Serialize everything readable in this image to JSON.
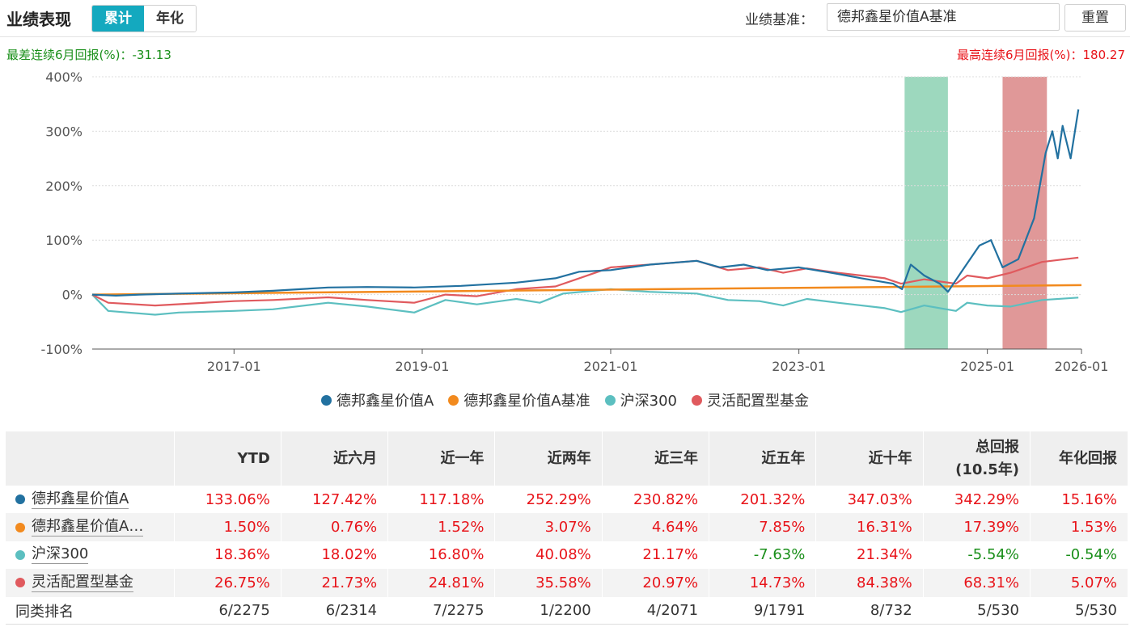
{
  "header": {
    "title": "业绩表现",
    "tabs": [
      {
        "label": "累计",
        "active": true
      },
      {
        "label": "年化",
        "active": false
      }
    ],
    "benchmark_label": "业绩基准：",
    "benchmark_value": "德邦鑫星价值A基准",
    "reset_label": "重置"
  },
  "stats": {
    "worst_label": "最差连续6月回报(%)：",
    "worst_value": "-31.13",
    "best_label": "最高连续6月回报(%)：",
    "best_value": "180.27"
  },
  "colors": {
    "fund": "#2271a0",
    "benchmark": "#f28a1e",
    "hs300": "#5cbfc0",
    "category": "#e05a5e",
    "worst_band": "#7ccba8",
    "best_band": "#d67676",
    "positive": "#e8141a",
    "negative": "#1a8f1a"
  },
  "chart_data": {
    "type": "line",
    "ylim": [
      -100,
      400
    ],
    "yticks": [
      "-100%",
      "0%",
      "100%",
      "200%",
      "300%",
      "400%"
    ],
    "xlim": [
      "2015-07-01",
      "2026-01-01"
    ],
    "xticks": [
      {
        "date": "2017-01-01",
        "label": "2017-01"
      },
      {
        "date": "2019-01-01",
        "label": "2019-01"
      },
      {
        "date": "2021-01-01",
        "label": "2021-01"
      },
      {
        "date": "2023-01-01",
        "label": "2023-01"
      },
      {
        "date": "2025-01-01",
        "label": "2025-01"
      },
      {
        "date": "2026-01-01",
        "label": "2026-01"
      }
    ],
    "bands": [
      {
        "kind": "worst",
        "from": "2024-02-15",
        "to": "2024-08-01"
      },
      {
        "kind": "best",
        "from": "2025-03-01",
        "to": "2025-08-20"
      }
    ],
    "series": [
      {
        "name": "德邦鑫星价值A",
        "color_key": "fund",
        "points": [
          [
            "2015-07-01",
            0
          ],
          [
            "2015-10-01",
            -2
          ],
          [
            "2016-01-01",
            0
          ],
          [
            "2016-06-01",
            2
          ],
          [
            "2017-01-01",
            4
          ],
          [
            "2017-06-01",
            7
          ],
          [
            "2018-01-01",
            13
          ],
          [
            "2018-06-01",
            14
          ],
          [
            "2018-12-01",
            13
          ],
          [
            "2019-06-01",
            16
          ],
          [
            "2020-01-01",
            22
          ],
          [
            "2020-06-01",
            30
          ],
          [
            "2020-09-01",
            42
          ],
          [
            "2021-01-01",
            45
          ],
          [
            "2021-06-01",
            55
          ],
          [
            "2021-12-01",
            62
          ],
          [
            "2022-03-01",
            50
          ],
          [
            "2022-06-01",
            55
          ],
          [
            "2022-09-01",
            45
          ],
          [
            "2023-01-01",
            50
          ],
          [
            "2023-06-01",
            38
          ],
          [
            "2023-09-01",
            30
          ],
          [
            "2024-01-01",
            20
          ],
          [
            "2024-02-05",
            10
          ],
          [
            "2024-03-10",
            55
          ],
          [
            "2024-05-01",
            35
          ],
          [
            "2024-07-01",
            20
          ],
          [
            "2024-08-01",
            5
          ],
          [
            "2024-09-20",
            40
          ],
          [
            "2024-12-01",
            90
          ],
          [
            "2025-01-15",
            100
          ],
          [
            "2025-03-01",
            50
          ],
          [
            "2025-05-01",
            65
          ],
          [
            "2025-07-01",
            140
          ],
          [
            "2025-08-15",
            260
          ],
          [
            "2025-09-10",
            300
          ],
          [
            "2025-10-01",
            250
          ],
          [
            "2025-10-20",
            310
          ],
          [
            "2025-11-20",
            250
          ],
          [
            "2025-12-20",
            340
          ]
        ]
      },
      {
        "name": "德邦鑫星价值A基准",
        "color_key": "benchmark",
        "points": [
          [
            "2015-07-01",
            0
          ],
          [
            "2026-01-01",
            17.4
          ]
        ]
      },
      {
        "name": "沪深300",
        "color_key": "hs300",
        "points": [
          [
            "2015-07-01",
            0
          ],
          [
            "2015-09-01",
            -30
          ],
          [
            "2016-03-01",
            -37
          ],
          [
            "2016-06-01",
            -33
          ],
          [
            "2017-01-01",
            -30
          ],
          [
            "2017-06-01",
            -27
          ],
          [
            "2018-01-01",
            -15
          ],
          [
            "2018-06-01",
            -22
          ],
          [
            "2018-12-01",
            -33
          ],
          [
            "2019-04-01",
            -10
          ],
          [
            "2019-08-01",
            -18
          ],
          [
            "2020-01-01",
            -8
          ],
          [
            "2020-04-01",
            -15
          ],
          [
            "2020-07-01",
            2
          ],
          [
            "2021-01-01",
            10
          ],
          [
            "2021-06-01",
            5
          ],
          [
            "2021-12-01",
            2
          ],
          [
            "2022-04-01",
            -10
          ],
          [
            "2022-08-01",
            -12
          ],
          [
            "2022-11-01",
            -20
          ],
          [
            "2023-02-01",
            -8
          ],
          [
            "2023-06-01",
            -15
          ],
          [
            "2023-12-01",
            -25
          ],
          [
            "2024-02-01",
            -32
          ],
          [
            "2024-05-01",
            -20
          ],
          [
            "2024-09-01",
            -30
          ],
          [
            "2024-10-15",
            -15
          ],
          [
            "2025-01-01",
            -20
          ],
          [
            "2025-04-01",
            -22
          ],
          [
            "2025-08-01",
            -10
          ],
          [
            "2025-12-20",
            -5.5
          ]
        ]
      },
      {
        "name": "灵活配置型基金",
        "color_key": "category",
        "points": [
          [
            "2015-07-01",
            0
          ],
          [
            "2015-09-01",
            -15
          ],
          [
            "2016-03-01",
            -20
          ],
          [
            "2017-01-01",
            -12
          ],
          [
            "2017-06-01",
            -10
          ],
          [
            "2018-01-01",
            -5
          ],
          [
            "2018-06-01",
            -10
          ],
          [
            "2018-12-01",
            -15
          ],
          [
            "2019-04-01",
            0
          ],
          [
            "2019-08-01",
            -3
          ],
          [
            "2020-01-01",
            10
          ],
          [
            "2020-06-01",
            15
          ],
          [
            "2020-09-01",
            30
          ],
          [
            "2021-01-01",
            50
          ],
          [
            "2021-06-01",
            55
          ],
          [
            "2021-12-01",
            62
          ],
          [
            "2022-04-01",
            45
          ],
          [
            "2022-08-01",
            50
          ],
          [
            "2022-11-01",
            40
          ],
          [
            "2023-02-01",
            48
          ],
          [
            "2023-06-01",
            40
          ],
          [
            "2023-12-01",
            30
          ],
          [
            "2024-02-01",
            20
          ],
          [
            "2024-05-01",
            28
          ],
          [
            "2024-09-01",
            20
          ],
          [
            "2024-10-15",
            35
          ],
          [
            "2025-01-01",
            30
          ],
          [
            "2025-04-01",
            40
          ],
          [
            "2025-08-01",
            60
          ],
          [
            "2025-12-20",
            68
          ]
        ]
      }
    ]
  },
  "legend": [
    {
      "label": "德邦鑫星价值A",
      "color_key": "fund"
    },
    {
      "label": "德邦鑫星价值A基准",
      "color_key": "benchmark"
    },
    {
      "label": "沪深300",
      "color_key": "hs300"
    },
    {
      "label": "灵活配置型基金",
      "color_key": "category"
    }
  ],
  "table": {
    "headers": [
      "",
      "YTD",
      "近六月",
      "近一年",
      "近两年",
      "近三年",
      "近五年",
      "近十年",
      "总回报\n(10.5年)",
      "年化回报"
    ],
    "rows": [
      {
        "name": "德邦鑫星价值A",
        "color_key": "fund",
        "values": [
          "133.06%",
          "127.42%",
          "117.18%",
          "252.29%",
          "230.82%",
          "201.32%",
          "347.03%",
          "342.29%",
          "15.16%"
        ]
      },
      {
        "name": "德邦鑫星价值A…",
        "color_key": "benchmark",
        "values": [
          "1.50%",
          "0.76%",
          "1.52%",
          "3.07%",
          "4.64%",
          "7.85%",
          "16.31%",
          "17.39%",
          "1.53%"
        ]
      },
      {
        "name": "沪深300",
        "color_key": "hs300",
        "values": [
          "18.36%",
          "18.02%",
          "16.80%",
          "40.08%",
          "21.17%",
          "-7.63%",
          "21.34%",
          "-5.54%",
          "-0.54%"
        ]
      },
      {
        "name": "灵活配置型基金",
        "color_key": "category",
        "values": [
          "26.75%",
          "21.73%",
          "24.81%",
          "35.58%",
          "20.97%",
          "14.73%",
          "84.38%",
          "68.31%",
          "5.07%"
        ]
      },
      {
        "name": "同类排名",
        "color_key": null,
        "values": [
          "6/2275",
          "6/2314",
          "7/2275",
          "1/2200",
          "4/2071",
          "9/1791",
          "8/732",
          "5/530",
          "5/530"
        ]
      }
    ]
  }
}
